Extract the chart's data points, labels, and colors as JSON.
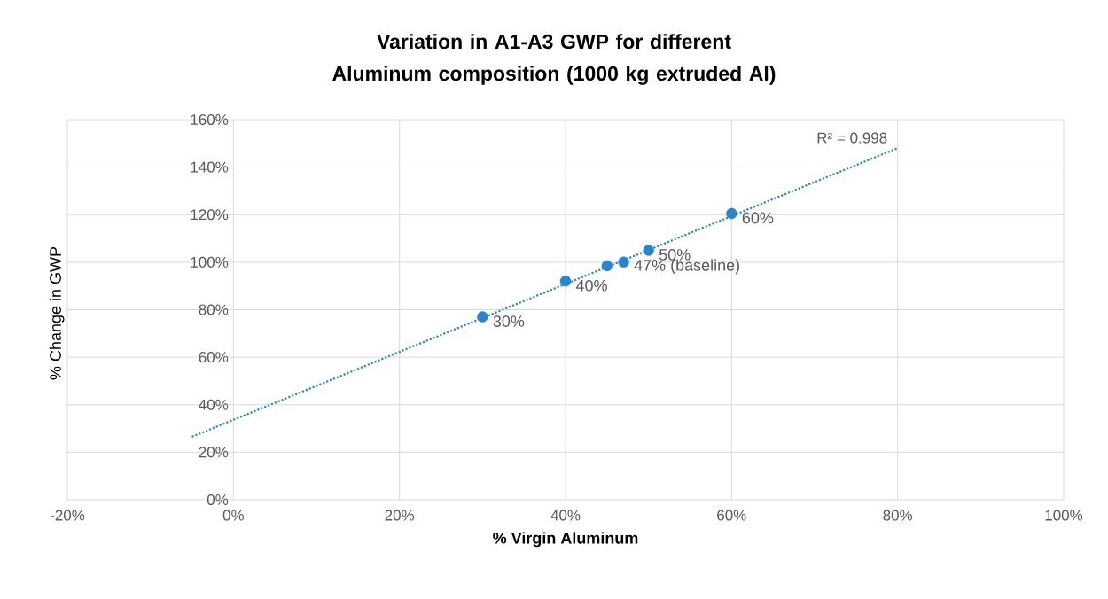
{
  "chart_data": {
    "type": "scatter",
    "title": "Variation in A1-A3 GWP for different Aluminum composition (1000 kg extruded Al)",
    "xlabel": "% Virgin Aluminum",
    "ylabel": "% Change in GWP",
    "xlim": [
      -20,
      100
    ],
    "xticks": [
      {
        "value": -20,
        "label": "-20%"
      },
      {
        "value": 0,
        "label": "0%"
      },
      {
        "value": 20,
        "label": "20%"
      },
      {
        "value": 40,
        "label": "40%"
      },
      {
        "value": 60,
        "label": "60%"
      },
      {
        "value": 80,
        "label": "80%"
      },
      {
        "value": 100,
        "label": "100%"
      }
    ],
    "ylim": [
      0,
      160
    ],
    "yticks": [
      {
        "value": 0,
        "label": "0%"
      },
      {
        "value": 20,
        "label": "20%"
      },
      {
        "value": 40,
        "label": "40%"
      },
      {
        "value": 60,
        "label": "60%"
      },
      {
        "value": 80,
        "label": "80%"
      },
      {
        "value": 100,
        "label": "100%"
      },
      {
        "value": 120,
        "label": "120%"
      },
      {
        "value": 140,
        "label": "140%"
      },
      {
        "value": 160,
        "label": "160%"
      }
    ],
    "grid": true,
    "series": [
      {
        "marker": "circle",
        "color": "#2a85d0",
        "x": [
          30,
          40,
          45,
          47,
          50,
          60
        ],
        "values": [
          77,
          92,
          98.5,
          100,
          105,
          120.5
        ]
      },
      {
        "type": "line",
        "color": "#2a85d0",
        "line_style": "dotted",
        "marker": "none",
        "x": [
          -5,
          80
        ],
        "values": [
          26.5,
          148
        ]
      }
    ],
    "annotations": [
      {
        "text": "30%",
        "x": 30,
        "y": 77
      },
      {
        "text": "40%",
        "x": 40,
        "y": 92
      },
      {
        "text": "47% (baseline)",
        "x": 47,
        "y": 100
      },
      {
        "text": "50%",
        "x": 50,
        "y": 105
      },
      {
        "text": "60%",
        "x": 60,
        "y": 120.5
      },
      "R² = 0.998"
    ]
  }
}
